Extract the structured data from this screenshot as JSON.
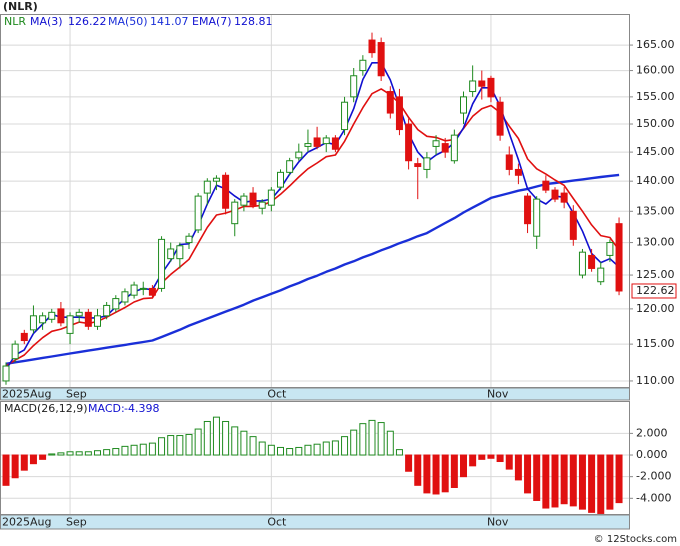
{
  "chart_data": {
    "type": "candlestick",
    "title": "(NLR)",
    "log_scale": true,
    "grid": true,
    "candles": {
      "name": "NLR",
      "up_color": "#1f8a1f",
      "down_color": "#e01010",
      "open": [
        110,
        113,
        116.5,
        117,
        118,
        118.5,
        120,
        116.5,
        119,
        119.5,
        117.5,
        119,
        120,
        121,
        122,
        123,
        123,
        123,
        127.5,
        127.5,
        130,
        132,
        138,
        140,
        141,
        133,
        136,
        138,
        135.5,
        136,
        139,
        141.5,
        144,
        146,
        147.5,
        146.5,
        147.5,
        149,
        155,
        160,
        166,
        165.5,
        156,
        155,
        150,
        143,
        142,
        146,
        146.5,
        143.5,
        152,
        156,
        158,
        158.5,
        154,
        144.5,
        142,
        137.5,
        131,
        140,
        138.5,
        138,
        135,
        125,
        128,
        124,
        128,
        133
      ],
      "high": [
        112.5,
        115.5,
        117,
        120.5,
        119.5,
        120,
        121,
        119.5,
        120,
        120,
        120,
        121,
        122,
        123,
        124,
        124,
        123.5,
        131,
        130,
        130,
        131.5,
        138,
        140.5,
        141,
        141.5,
        137,
        138,
        139,
        137,
        139,
        142,
        144,
        146.5,
        149,
        149.5,
        148,
        148,
        155,
        160.5,
        163,
        167.5,
        166.5,
        157,
        156.5,
        151,
        144,
        145,
        148,
        147.5,
        149,
        156,
        161,
        160,
        159,
        155,
        146,
        143,
        138,
        137.5,
        141,
        139,
        139,
        136,
        129,
        129,
        127,
        130.5,
        134
      ],
      "low": [
        109.5,
        112.5,
        115,
        116.5,
        117,
        118,
        117.5,
        115,
        118,
        117,
        117,
        118.5,
        119.5,
        120.5,
        121.5,
        122,
        121.5,
        122.5,
        127,
        126,
        129,
        131.5,
        136,
        138.5,
        134.5,
        131,
        135,
        135.5,
        134.5,
        135,
        138.5,
        141,
        143.5,
        145,
        145.5,
        145,
        145,
        148,
        154,
        159,
        162.5,
        158,
        151,
        148,
        142,
        137,
        140.5,
        144.5,
        144,
        143,
        150,
        155,
        154.5,
        154,
        147,
        141,
        139.5,
        131.5,
        129,
        138,
        136.5,
        135.5,
        129.5,
        124.5,
        125.5,
        123.5,
        127,
        122
      ],
      "close": [
        112,
        115,
        115.5,
        119,
        119,
        119.5,
        118,
        119,
        119.5,
        117.5,
        119,
        120.5,
        121.5,
        122.5,
        123.5,
        123,
        122,
        130.5,
        129,
        129.5,
        131,
        137.5,
        140,
        140.5,
        135.5,
        136.5,
        137.5,
        136,
        136.5,
        138.5,
        141.5,
        143.5,
        145,
        146.5,
        146,
        147.5,
        145.5,
        154,
        159,
        162,
        163.5,
        159,
        152,
        149,
        143.5,
        142.5,
        144,
        147,
        145,
        148,
        155,
        158,
        157,
        155,
        148,
        142,
        141,
        133,
        137,
        138.5,
        137,
        136.5,
        130.5,
        128.5,
        126,
        126.05,
        130,
        122.62
      ]
    },
    "series": [
      {
        "name": "MA(50)",
        "color": "#1a2fd8",
        "width": 2.4,
        "values": [
          112.3,
          112.5,
          112.7,
          112.9,
          113.1,
          113.3,
          113.5,
          113.7,
          113.9,
          114.1,
          114.3,
          114.5,
          114.7,
          114.9,
          115.1,
          115.3,
          115.5,
          116.0,
          116.5,
          117.0,
          117.6,
          118.1,
          118.6,
          119.1,
          119.6,
          120.1,
          120.6,
          121.2,
          121.7,
          122.2,
          122.7,
          123.3,
          123.8,
          124.4,
          124.9,
          125.5,
          126,
          126.6,
          127.1,
          127.7,
          128.2,
          128.8,
          129.3,
          129.9,
          130.4,
          131,
          131.5,
          132.3,
          133.1,
          133.9,
          134.8,
          135.6,
          136.4,
          137.2,
          137.6,
          138,
          138.4,
          138.7,
          139.1,
          139.5,
          139.7,
          139.9,
          140.1,
          140.3,
          140.5,
          140.7,
          140.9,
          141.07
        ]
      },
      {
        "name": "EMA(7)",
        "color": "#e01010",
        "width": 1.6,
        "values": [
          112,
          112.8,
          113.5,
          114.8,
          115.9,
          116.8,
          117.1,
          117.6,
          118.1,
          117.9,
          118.2,
          118.8,
          119.5,
          120.2,
          121,
          121.5,
          121.6,
          123.8,
          125.1,
          126.2,
          127.4,
          129.9,
          132.4,
          134.4,
          134.7,
          135.2,
          135.8,
          135.8,
          136,
          136.6,
          137.8,
          139.2,
          140.7,
          142.1,
          143.1,
          144.2,
          144.5,
          146.9,
          150,
          153,
          155.6,
          156.5,
          155.4,
          153.8,
          151.2,
          149,
          147.8,
          147.6,
          147,
          147.2,
          149.2,
          151.4,
          152.8,
          153.4,
          152.1,
          149.6,
          147.4,
          143.8,
          142.1,
          141.2,
          140.2,
          139.3,
          137.1,
          135,
          132.8,
          131.1,
          130.8,
          128.81
        ]
      },
      {
        "name": "MA(3)",
        "color": "#1010d0",
        "width": 1.6,
        "values": [
          111.5,
          113.5,
          114.2,
          116.5,
          117.8,
          119.2,
          118.8,
          118.8,
          118.8,
          118.7,
          118.7,
          119,
          120.3,
          121.5,
          122.5,
          123,
          122.8,
          125.2,
          127.2,
          129.7,
          129.8,
          132.7,
          136.2,
          139.3,
          138.7,
          137.5,
          136.5,
          136.7,
          136.7,
          137,
          138.8,
          141.2,
          143.3,
          145,
          145.8,
          146.7,
          146.3,
          149,
          152.8,
          158.3,
          161.5,
          161.5,
          158.2,
          153.3,
          148.2,
          145,
          143.3,
          144.5,
          145.3,
          146.7,
          149.3,
          153.7,
          156.7,
          156.7,
          153.3,
          148.3,
          143.7,
          138.7,
          137,
          136.2,
          137.5,
          137.3,
          134.7,
          131.8,
          128.3,
          126.9,
          127.5,
          126.22
        ]
      }
    ],
    "ylim": [
      109.2,
      171.1
    ],
    "yticks": [
      {
        "value": 110,
        "label": "110.00"
      },
      {
        "value": 115,
        "label": "115.00"
      },
      {
        "value": 120,
        "label": "120.00"
      },
      {
        "value": 125,
        "label": "125.00"
      },
      {
        "value": 130,
        "label": "130.00"
      },
      {
        "value": 135,
        "label": "135.00"
      },
      {
        "value": 140,
        "label": "140.00"
      },
      {
        "value": 145,
        "label": "145.00"
      },
      {
        "value": 150,
        "label": "150.00"
      },
      {
        "value": 155,
        "label": "155.00"
      },
      {
        "value": 160,
        "label": "160.00"
      },
      {
        "value": 165,
        "label": "165.00"
      }
    ],
    "xticks": [
      {
        "value": 0,
        "label": "2025Aug"
      },
      {
        "value": 7,
        "label": "Sep"
      },
      {
        "value": 29,
        "label": "Oct"
      },
      {
        "value": 53,
        "label": "Nov"
      }
    ],
    "macd": {
      "name": "MACD(26,12,9)",
      "label": "MACD:",
      "up_color": "#1f8a1f",
      "down_color": "#e01010",
      "values": [
        -2.8,
        -2.1,
        -1.4,
        -0.8,
        -0.4,
        0.1,
        0.2,
        0.3,
        0.3,
        0.3,
        0.4,
        0.5,
        0.6,
        0.8,
        0.9,
        1.0,
        1.1,
        1.6,
        1.8,
        1.8,
        1.9,
        2.4,
        3.1,
        3.5,
        3.1,
        2.6,
        2.2,
        1.7,
        1.2,
        0.9,
        0.7,
        0.6,
        0.7,
        0.9,
        1.0,
        1.2,
        1.3,
        1.7,
        2.3,
        2.9,
        3.2,
        3.0,
        2.2,
        0.5,
        -1.5,
        -2.8,
        -3.5,
        -3.6,
        -3.4,
        -3.0,
        -2.0,
        -1.0,
        -0.4,
        -0.3,
        -0.6,
        -1.3,
        -2.3,
        -3.5,
        -4.2,
        -4.9,
        -4.8,
        -4.5,
        -4.7,
        -5.0,
        -5.3,
        -5.4,
        -5.0,
        -4.398
      ],
      "ylim": [
        -5.45,
        4.9
      ],
      "yticks": [
        {
          "value": -4,
          "label": "-4.000"
        },
        {
          "value": -2,
          "label": "-2.000"
        },
        {
          "value": 0,
          "label": "0.000"
        },
        {
          "value": 2,
          "label": "2.000"
        }
      ]
    },
    "footer": "© 12Stocks.com"
  }
}
